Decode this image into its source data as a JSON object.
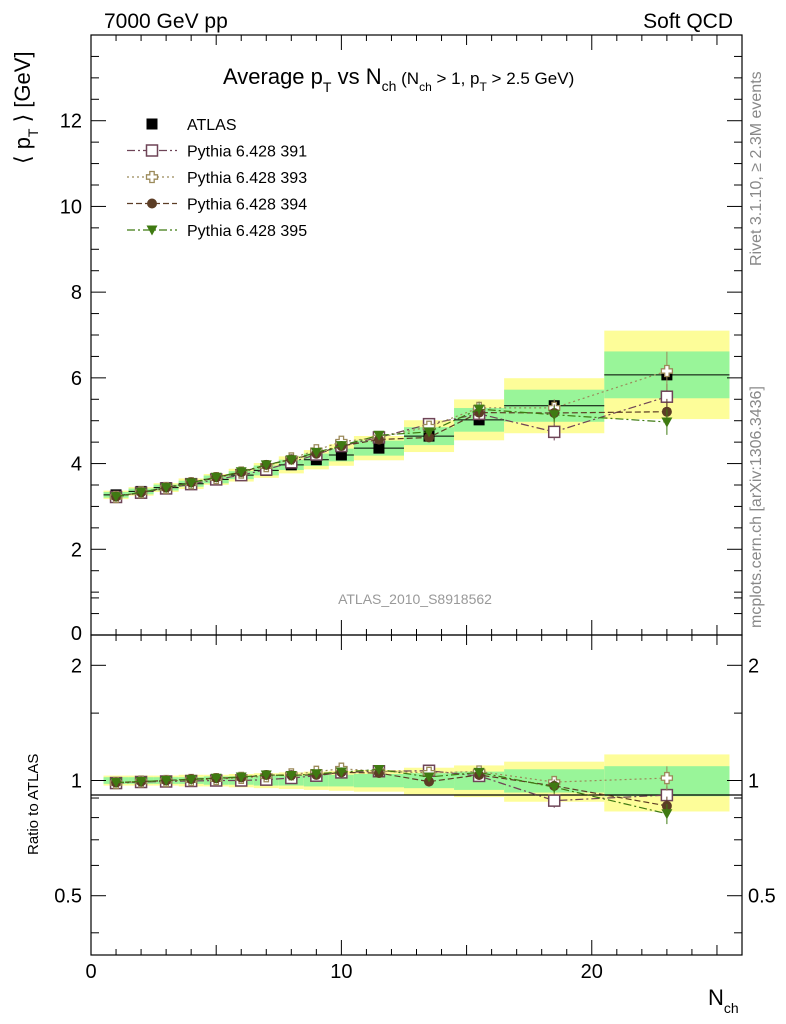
{
  "header": {
    "left": "7000 GeV pp",
    "right": "Soft QCD"
  },
  "side_labels": {
    "rivet": "Rivet 3.1.10, ≥ 2.3M events",
    "mcplots": "mcplots.cern.ch [arXiv:1306.3436]"
  },
  "chart_data": {
    "type": "scatter",
    "title": {
      "main": "Average p",
      "main_sub": "T",
      "vs": " vs N",
      "vs_sub": "ch",
      "cond_open": " (N",
      "cond_sub1": "ch",
      "cond_mid": " > 1, p",
      "cond_sub2": "T",
      "cond_close": " > 2.5 GeV)"
    },
    "watermark": "ATLAS_2010_S8918562",
    "xlabel": "N",
    "xlabel_sub": "ch",
    "ylabel": "⟨ p",
    "ylabel_sub": "T",
    "ylabel_end": " ⟩  [GeV]",
    "ratio_ylabel": "Ratio to ATLAS",
    "xlim": [
      0,
      26
    ],
    "ylim": [
      0,
      14
    ],
    "ratio_ylim": [
      0.35,
      2.4
    ],
    "ratio_scale": "log",
    "x_ticks": [
      "0",
      "10",
      "20"
    ],
    "y_ticks": [
      "2",
      "4",
      "6",
      "8",
      "10",
      "12"
    ],
    "y_ticks_cut": "0",
    "ratio_ticks": [
      "0.5",
      "1",
      "2"
    ],
    "legend_position": "top-left",
    "reference": {
      "name": "ATLAS",
      "x": [
        1,
        2,
        3,
        4,
        5,
        6,
        7,
        8,
        9,
        10,
        11.5,
        13.5,
        15.5,
        18.5,
        23
      ],
      "xerr_low": [
        0.5,
        0.5,
        0.5,
        0.5,
        0.5,
        0.5,
        0.5,
        0.5,
        0.5,
        0.5,
        1,
        1,
        1,
        2,
        2.5
      ],
      "xerr_high": [
        0.5,
        0.5,
        0.5,
        0.5,
        0.5,
        0.5,
        0.5,
        0.5,
        0.5,
        0.5,
        1,
        1,
        1,
        2,
        2.5
      ],
      "y": [
        3.27,
        3.35,
        3.44,
        3.53,
        3.63,
        3.73,
        3.84,
        3.97,
        4.09,
        4.2,
        4.36,
        4.64,
        5.02,
        5.35,
        6.07
      ],
      "band_inner": [
        0.02,
        0.02,
        0.02,
        0.02,
        0.025,
        0.025,
        0.03,
        0.03,
        0.035,
        0.035,
        0.04,
        0.045,
        0.055,
        0.07,
        0.09
      ],
      "band_outer": [
        0.03,
        0.03,
        0.03,
        0.035,
        0.035,
        0.04,
        0.045,
        0.05,
        0.055,
        0.06,
        0.065,
        0.08,
        0.095,
        0.12,
        0.17
      ]
    },
    "series": [
      {
        "name": "Pythia 6.428 391",
        "color": "#6e4457",
        "marker": "open-square",
        "dash": "8 3 2 3",
        "y": [
          3.22,
          3.32,
          3.42,
          3.52,
          3.63,
          3.73,
          3.86,
          4.03,
          4.21,
          4.41,
          4.61,
          4.92,
          5.16,
          4.74,
          5.56
        ],
        "err": [
          0.02,
          0.02,
          0.02,
          0.02,
          0.02,
          0.03,
          0.03,
          0.03,
          0.05,
          0.06,
          0.08,
          0.1,
          0.15,
          0.2,
          0.3
        ]
      },
      {
        "name": "Pythia 6.428 393",
        "color": "#9b8a5a",
        "marker": "open-cross",
        "dash": "2 3",
        "y": [
          3.22,
          3.33,
          3.43,
          3.54,
          3.66,
          3.79,
          3.94,
          4.12,
          4.31,
          4.51,
          4.61,
          4.86,
          5.3,
          5.3,
          6.16
        ],
        "err": [
          0.02,
          0.02,
          0.02,
          0.02,
          0.02,
          0.03,
          0.03,
          0.03,
          0.05,
          0.06,
          0.08,
          0.1,
          0.15,
          0.2,
          0.45
        ]
      },
      {
        "name": "Pythia 6.428 394",
        "color": "#5c3d25",
        "marker": "filled-circle",
        "dash": "6 3",
        "y": [
          3.23,
          3.33,
          3.44,
          3.56,
          3.68,
          3.8,
          3.97,
          4.1,
          4.23,
          4.41,
          4.56,
          4.61,
          5.19,
          5.18,
          5.21
        ],
        "err": [
          0.02,
          0.02,
          0.02,
          0.02,
          0.02,
          0.03,
          0.03,
          0.03,
          0.05,
          0.06,
          0.08,
          0.1,
          0.15,
          0.2,
          0.3
        ]
      },
      {
        "name": "Pythia 6.428 395",
        "color": "#3f7a12",
        "marker": "filled-triangle-down",
        "dash": "8 3 2 3",
        "y": [
          3.23,
          3.33,
          3.44,
          3.55,
          3.68,
          3.81,
          3.97,
          4.09,
          4.26,
          4.42,
          4.66,
          4.74,
          5.27,
          5.14,
          4.97
        ],
        "err": [
          0.02,
          0.02,
          0.02,
          0.02,
          0.02,
          0.03,
          0.03,
          0.03,
          0.05,
          0.06,
          0.08,
          0.1,
          0.15,
          0.2,
          0.3
        ]
      }
    ],
    "colors": {
      "reference": "#000000",
      "band_inner": "#99f599",
      "band_outer": "#fdfd99",
      "watermark": "#999999",
      "side_text": "#888888"
    }
  }
}
